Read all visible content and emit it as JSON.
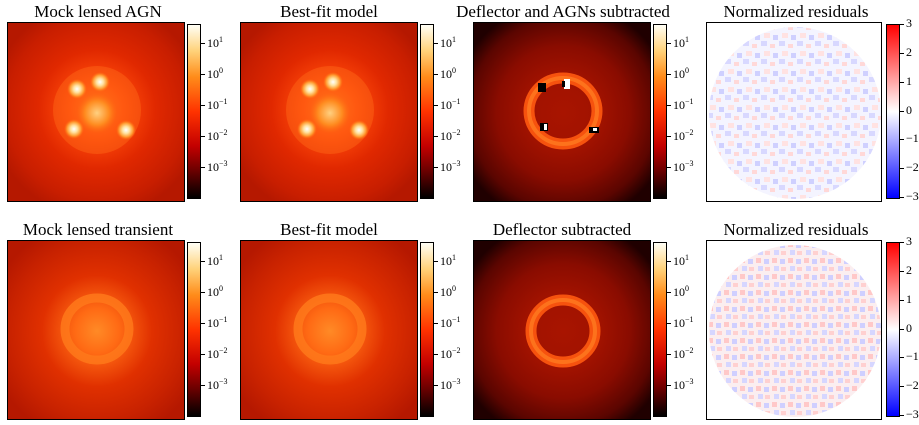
{
  "rows": [
    {
      "panels": [
        {
          "title": "Mock lensed AGN",
          "kind": "log-agn"
        },
        {
          "title": "Best-fit model",
          "kind": "log-agn"
        },
        {
          "title": "Deflector and AGNs subtracted",
          "kind": "subtracted-agn"
        },
        {
          "title": "Normalized residuals",
          "kind": "residual"
        }
      ]
    },
    {
      "panels": [
        {
          "title": "Mock lensed transient",
          "kind": "log-transient"
        },
        {
          "title": "Best-fit model",
          "kind": "log-transient"
        },
        {
          "title": "Deflector subtracted",
          "kind": "subtracted-ring"
        },
        {
          "title": "Normalized residuals",
          "kind": "residual"
        }
      ]
    }
  ],
  "log_colorbar": {
    "base": "10",
    "exponents": [
      "1",
      "0",
      "−1",
      "−2",
      "−3"
    ],
    "colors": [
      "#fffff6",
      "#ffd27a",
      "#ff8c1a",
      "#ff3300",
      "#c30000",
      "#660000",
      "#000000"
    ]
  },
  "residual_colorbar": {
    "ticks": [
      "3",
      "2",
      "1",
      "0",
      "−1",
      "−2",
      "−3"
    ],
    "colors": [
      "#ff0000",
      "#ffffff",
      "#0000ff"
    ]
  }
}
